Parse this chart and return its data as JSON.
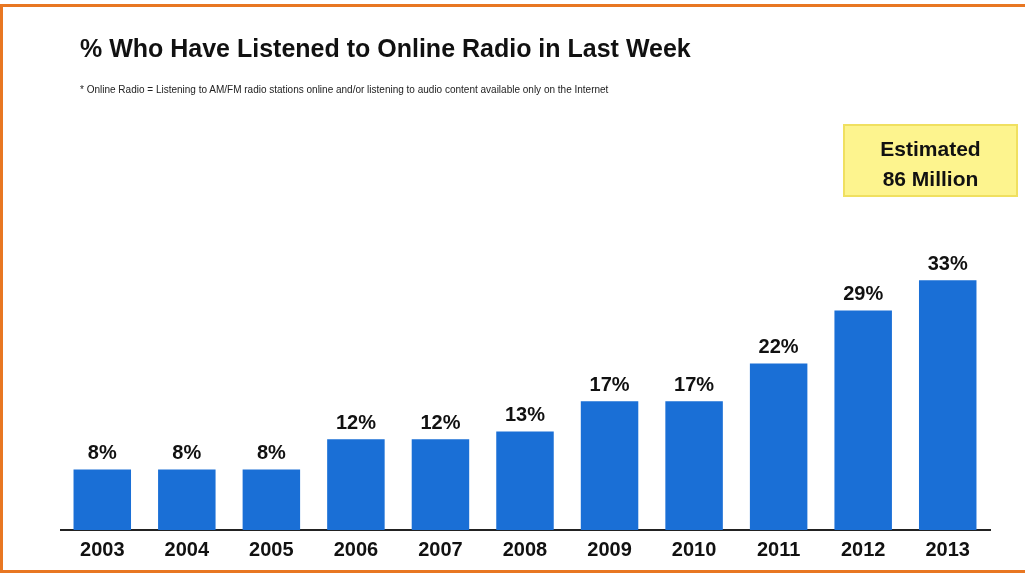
{
  "chart_data": {
    "type": "bar",
    "title": "% Who Have Listened to Online Radio in Last Week",
    "subtitle": "* Online Radio = Listening to AM/FM radio stations online and/or listening to audio content available only on the Internet",
    "annotations": [
      "Estimated\n86 Million"
    ],
    "categories": [
      "2003",
      "2004",
      "2005",
      "2006",
      "2007",
      "2008",
      "2009",
      "2010",
      "2011",
      "2012",
      "2013"
    ],
    "values": [
      8,
      8,
      8,
      12,
      12,
      13,
      17,
      17,
      22,
      29,
      33
    ],
    "value_labels": [
      "8%",
      "8%",
      "8%",
      "12%",
      "12%",
      "13%",
      "17%",
      "17%",
      "22%",
      "29%",
      "33%"
    ],
    "color": "#1a6fd6",
    "grid": false,
    "legend": false
  }
}
